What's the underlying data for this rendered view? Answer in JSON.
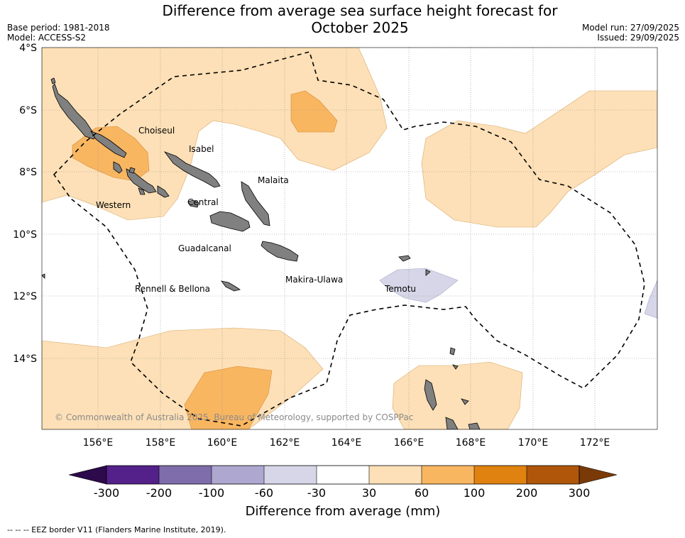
{
  "header": {
    "title_line1": "Difference from average sea surface height forecast for",
    "title_line2": "October 2025",
    "base_period": "Base period: 1981-2018",
    "model": "Model: ACCESS-S2",
    "model_run": "Model run: 27/09/2025",
    "issued": "Issued: 29/09/2025"
  },
  "map": {
    "lat_ticks": [
      "4°S",
      "6°S",
      "8°S",
      "10°S",
      "12°S",
      "14°S"
    ],
    "lon_ticks": [
      "156°E",
      "158°E",
      "160°E",
      "162°E",
      "164°E",
      "166°E",
      "168°E",
      "170°E",
      "172°E"
    ],
    "regions": [
      "Choiseul",
      "Isabel",
      "Malaita",
      "Western",
      "Central",
      "Guadalcanal",
      "Makira-Ulawa",
      "Rennell & Bellona",
      "Temotu"
    ],
    "copyright": "© Commonwealth of Australia 2025, Bureau of Meteorology, supported by COSPPac",
    "land_color": "#808080",
    "eez_color": "#000000"
  },
  "colorbar": {
    "title": "Difference from average (mm)",
    "ticks": [
      "-300",
      "-200",
      "-100",
      "-60",
      "-30",
      "30",
      "60",
      "100",
      "200",
      "300"
    ],
    "colors": [
      "#2d0a4b",
      "#54208a",
      "#7e6daa",
      "#aea7d0",
      "#d6d6e8",
      "#ffffff",
      "#fde0b7",
      "#f9b661",
      "#e0820f",
      "#b0560a",
      "#7a3a08"
    ]
  },
  "footnote": "--  --  -- EEZ border V11 (Flanders Marine Institute, 2019)."
}
